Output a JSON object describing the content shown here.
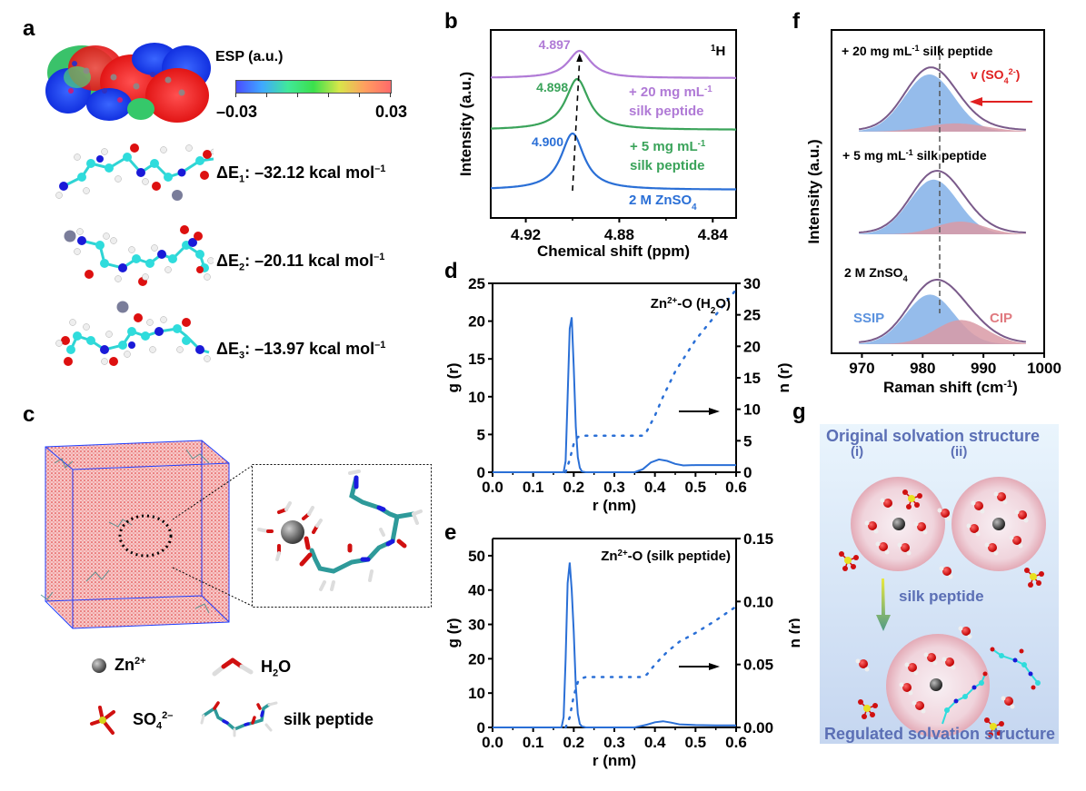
{
  "figure": {
    "panel_labels": {
      "a": "a",
      "b": "b",
      "c": "c",
      "d": "d",
      "e": "e",
      "f": "f",
      "g": "g"
    }
  },
  "panel_a": {
    "colorbar_title": "ESP (a.u.)",
    "colorbar_min": "–0.03",
    "colorbar_max": "0.03",
    "colorbar_colors": [
      "#4a4cff",
      "#3fa8ff",
      "#41e89a",
      "#3be04c",
      "#d8e64a",
      "#ff9e60",
      "#ff6a6a"
    ],
    "energies": [
      {
        "label": "ΔE",
        "sub": "1",
        "value": ": –32.12 kcal mol",
        "sup": "–1"
      },
      {
        "label": "ΔE",
        "sub": "2",
        "value": ": –20.11 kcal mol",
        "sup": "–1"
      },
      {
        "label": "ΔE",
        "sub": "3",
        "value": ": –13.97 kcal mol",
        "sup": "–1"
      }
    ]
  },
  "panel_c": {
    "legend": [
      {
        "icon": "zn-ion-icon",
        "text": "Zn",
        "sup": "2+"
      },
      {
        "icon": "water-molecule-icon",
        "text": "H",
        "sub": "2",
        "text2": "O"
      },
      {
        "icon": "sulfate-icon",
        "text": "SO",
        "sub": "4",
        "sup": "2–"
      },
      {
        "icon": "silk-peptide-icon",
        "text": "silk peptide"
      }
    ]
  },
  "panel_g": {
    "top_title": "Original solvation structure",
    "label_i": "(i)",
    "label_ii": "(ii)",
    "arrow_label": "silk peptide",
    "bottom_title": "Regulated solvation structure"
  },
  "chart_data": [
    {
      "id": "b",
      "type": "line",
      "title": "",
      "annotation": "1H",
      "xlabel": "Chemical shift (ppm)",
      "ylabel": "Intensity (a.u.)",
      "xlim": [
        4.935,
        4.83
      ],
      "x_reversed": true,
      "xticks": [
        "4.92",
        "4.88",
        "4.84"
      ],
      "xtick_values": [
        4.92,
        4.88,
        4.84
      ],
      "series": [
        {
          "name": "2 M ZnSO4",
          "label": "2 M ZnSO",
          "label_sub": "4",
          "color": "#2a6fd6",
          "peak": 4.9,
          "peak_label": "4.900",
          "offset": 0
        },
        {
          "name": "+ 5 mg mL-1 silk peptide",
          "label_line1": "+ 5 mg mL",
          "label_sup": "-1",
          "label_line2": "silk peptide",
          "color": "#3aa35a",
          "peak": 4.898,
          "peak_label": "4.898",
          "offset": 1
        },
        {
          "name": "+ 20 mg mL-1 silk peptide",
          "label_line1": "+ 20 mg mL",
          "label_sup": "-1",
          "label_line2": "silk peptide",
          "color": "#b07ad6",
          "peak": 4.897,
          "peak_label": "4.897",
          "offset": 2
        }
      ]
    },
    {
      "id": "d",
      "type": "line",
      "title": "Zn2+-O (H2O)",
      "title_parts": {
        "a": "Zn",
        "sup": "2+",
        "b": "-O (H",
        "sub": "2",
        "c": "O)"
      },
      "xlabel": "r (nm)",
      "ylabel": "g (r)",
      "ylabel_right": "n (r)",
      "xlim": [
        0,
        0.6
      ],
      "ylim": [
        0,
        25
      ],
      "ylim_right": [
        0,
        30
      ],
      "xticks": [
        "0.0",
        "0.1",
        "0.2",
        "0.3",
        "0.4",
        "0.5",
        "0.6"
      ],
      "yticks": [
        "0",
        "5",
        "10",
        "15",
        "20",
        "25"
      ],
      "yticks_right": [
        "0",
        "5",
        "10",
        "15",
        "20",
        "25",
        "30"
      ],
      "series": [
        {
          "name": "g(r)",
          "style": "solid",
          "color": "#2a6fd6",
          "x": [
            0,
            0.175,
            0.18,
            0.185,
            0.19,
            0.195,
            0.2,
            0.205,
            0.21,
            0.215,
            0.22,
            0.23,
            0.35,
            0.37,
            0.39,
            0.41,
            0.43,
            0.45,
            0.47,
            0.5,
            0.55,
            0.6
          ],
          "y": [
            0,
            0,
            1.5,
            10,
            19,
            20.5,
            14,
            6,
            2,
            0.6,
            0.1,
            0,
            0,
            0.4,
            1.3,
            1.7,
            1.5,
            1.1,
            0.9,
            0.95,
            0.95,
            0.95
          ]
        },
        {
          "name": "n(r)",
          "style": "dotted",
          "color": "#2a6fd6",
          "axis": "right",
          "x": [
            0.18,
            0.19,
            0.2,
            0.21,
            0.22,
            0.23,
            0.3,
            0.37,
            0.38,
            0.4,
            0.42,
            0.45,
            0.5,
            0.55,
            0.6
          ],
          "y": [
            0,
            2,
            4.5,
            5.6,
            5.8,
            5.8,
            5.8,
            5.8,
            6.5,
            9,
            12,
            16,
            21,
            25,
            29
          ]
        }
      ]
    },
    {
      "id": "e",
      "type": "line",
      "title": "Zn2+-O (silk peptide)",
      "title_parts": {
        "a": "Zn",
        "sup": "2+",
        "b": "-O (silk peptide)"
      },
      "xlabel": "r (nm)",
      "ylabel": "g (r)",
      "ylabel_right": "n (r)",
      "xlim": [
        0,
        0.6
      ],
      "ylim": [
        0,
        55
      ],
      "ylim_right": [
        0,
        0.15
      ],
      "xticks": [
        "0.0",
        "0.1",
        "0.2",
        "0.3",
        "0.4",
        "0.5",
        "0.6"
      ],
      "yticks": [
        "0",
        "10",
        "20",
        "30",
        "40",
        "50"
      ],
      "yticks_right": [
        "0.00",
        "0.05",
        "0.10",
        "0.15"
      ],
      "series": [
        {
          "name": "g(r)",
          "style": "solid",
          "color": "#2a6fd6",
          "x": [
            0,
            0.17,
            0.175,
            0.18,
            0.185,
            0.19,
            0.195,
            0.2,
            0.205,
            0.21,
            0.215,
            0.22,
            0.23,
            0.35,
            0.38,
            0.4,
            0.42,
            0.44,
            0.46,
            0.5,
            0.55,
            0.6
          ],
          "y": [
            0,
            0,
            3,
            20,
            42,
            48,
            40,
            28,
            12,
            4,
            1,
            0.3,
            0,
            0,
            0.8,
            1.5,
            1.8,
            1.4,
            0.9,
            0.7,
            0.6,
            0.6
          ]
        },
        {
          "name": "n(r)",
          "style": "dotted",
          "color": "#2a6fd6",
          "axis": "right",
          "x": [
            0.18,
            0.19,
            0.2,
            0.21,
            0.22,
            0.23,
            0.3,
            0.37,
            0.38,
            0.4,
            0.43,
            0.46,
            0.5,
            0.55,
            0.6
          ],
          "y": [
            0,
            0.008,
            0.025,
            0.036,
            0.039,
            0.04,
            0.04,
            0.04,
            0.042,
            0.05,
            0.06,
            0.068,
            0.075,
            0.085,
            0.096
          ]
        }
      ]
    },
    {
      "id": "f",
      "type": "area",
      "title": "",
      "xlabel": "Raman shift (cm-1)",
      "xlabel_parts": {
        "a": "Raman shift (cm",
        "sup": "-1",
        "b": ")"
      },
      "ylabel": "Intensity (a.u.)",
      "xlim": [
        965,
        1000
      ],
      "xticks": [
        "970",
        "980",
        "990",
        "1000"
      ],
      "xtick_values": [
        970,
        980,
        990,
        1000
      ],
      "reference_line": 982.8,
      "annotation": "v (SO4 2-)",
      "annotation_parts": {
        "a": "v (SO",
        "sub": "4",
        "sup": "2-",
        "b": ")"
      },
      "ssip_label": "SSIP",
      "cip_label": "CIP",
      "colors": {
        "ssip": "#8fb8ea",
        "cip": "#d99aa6",
        "envelope": "#7a5a8a",
        "arrow": "#e02020",
        "annotation": "#e02020"
      },
      "series": [
        {
          "name": "2 M ZnSO4",
          "label": "2 M ZnSO",
          "label_sub": "4",
          "ssip_center": 981.2,
          "ssip_width": 4.0,
          "ssip_amp": 0.78,
          "cip_center": 986.3,
          "cip_width": 4.2,
          "cip_amp": 0.38
        },
        {
          "name": "+ 5 mg mL-1 silk peptide",
          "label": "+ 5 mg mL",
          "label_sup": "-1",
          "label_b": " silk peptide",
          "ssip_center": 981.8,
          "ssip_width": 4.0,
          "ssip_amp": 0.86,
          "cip_center": 986.2,
          "cip_width": 4.0,
          "cip_amp": 0.2
        },
        {
          "name": "+ 20 mg mL-1 silk peptide",
          "label": "+ 20 mg mL",
          "label_sup": "-1",
          "label_b": " silk peptide",
          "ssip_center": 981.1,
          "ssip_width": 4.1,
          "ssip_amp": 0.9,
          "cip_center": 985.5,
          "cip_width": 5.0,
          "cip_amp": 0.13
        }
      ]
    }
  ]
}
